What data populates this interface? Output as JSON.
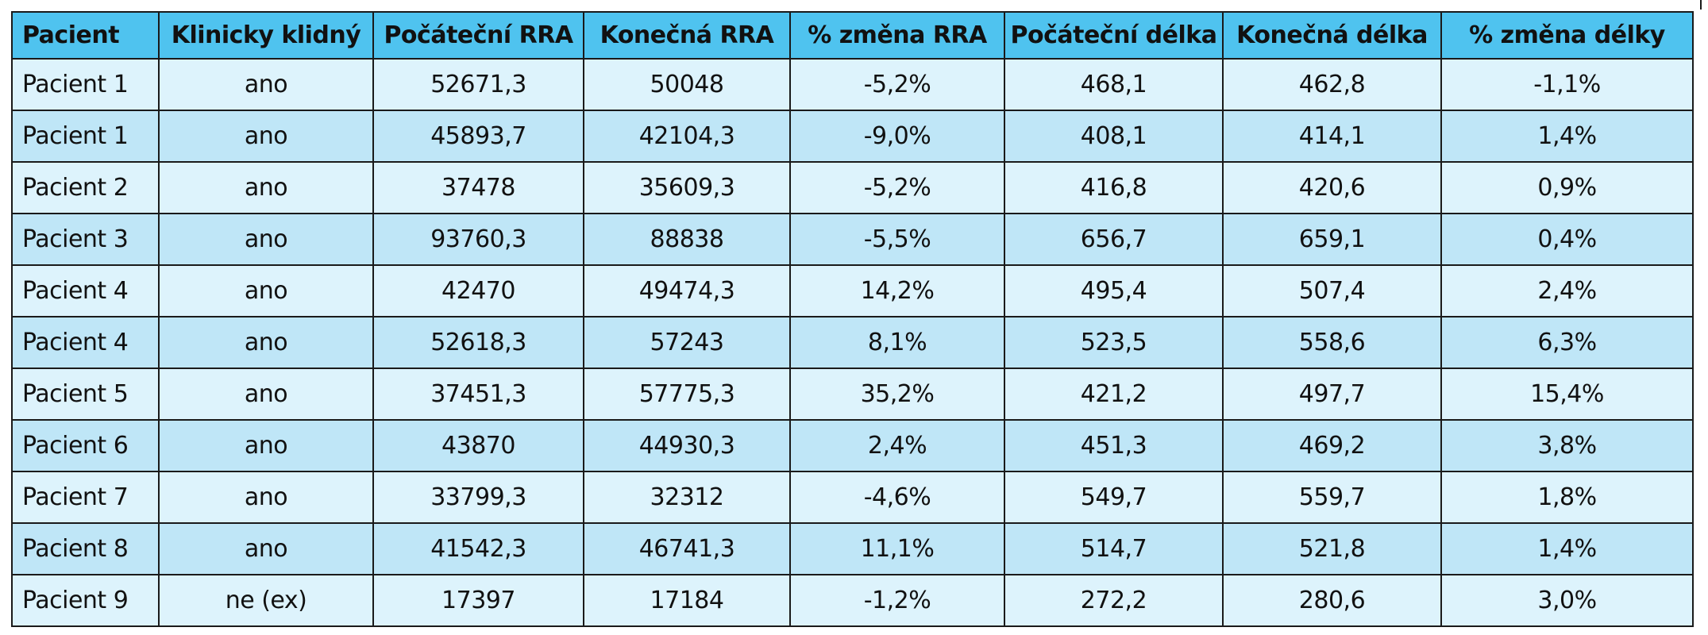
{
  "table": {
    "headers": [
      "Pacient",
      "Klinicky klidný",
      "Počáteční RRA",
      "Konečná RRA",
      "% změna RRA",
      "Počáteční délka",
      "Konečná délka",
      "% změna délky"
    ],
    "rows": [
      [
        "Pacient 1",
        "ano",
        "52671,3",
        "50048",
        "-5,2%",
        "468,1",
        "462,8",
        "-1,1%"
      ],
      [
        "Pacient 1",
        "ano",
        "45893,7",
        "42104,3",
        "-9,0%",
        "408,1",
        "414,1",
        "1,4%"
      ],
      [
        "Pacient 2",
        "ano",
        "37478",
        "35609,3",
        "-5,2%",
        "416,8",
        "420,6",
        "0,9%"
      ],
      [
        "Pacient 3",
        "ano",
        "93760,3",
        "88838",
        "-5,5%",
        "656,7",
        "659,1",
        "0,4%"
      ],
      [
        "Pacient 4",
        "ano",
        "42470",
        "49474,3",
        "14,2%",
        "495,4",
        "507,4",
        "2,4%"
      ],
      [
        "Pacient 4",
        "ano",
        "52618,3",
        "57243",
        "8,1%",
        "523,5",
        "558,6",
        "6,3%"
      ],
      [
        "Pacient 5",
        "ano",
        "37451,3",
        "57775,3",
        "35,2%",
        "421,2",
        "497,7",
        "15,4%"
      ],
      [
        "Pacient 6",
        "ano",
        "43870",
        "44930,3",
        "2,4%",
        "451,3",
        "469,2",
        "3,8%"
      ],
      [
        "Pacient 7",
        "ano",
        "33799,3",
        "32312",
        "-4,6%",
        "549,7",
        "559,7",
        "1,8%"
      ],
      [
        "Pacient 8",
        "ano",
        "41542,3",
        "46741,3",
        "11,1%",
        "514,7",
        "521,8",
        "1,4%"
      ],
      [
        "Pacient 9",
        "ne (ex)",
        "17397",
        "17184",
        "-1,2%",
        "272,2",
        "280,6",
        "3,0%"
      ]
    ]
  },
  "colors": {
    "header_bg": "#4fc3ef",
    "row_light": "#ddf3fc",
    "row_dark": "#bfe6f7",
    "border": "#1a1a1a"
  }
}
